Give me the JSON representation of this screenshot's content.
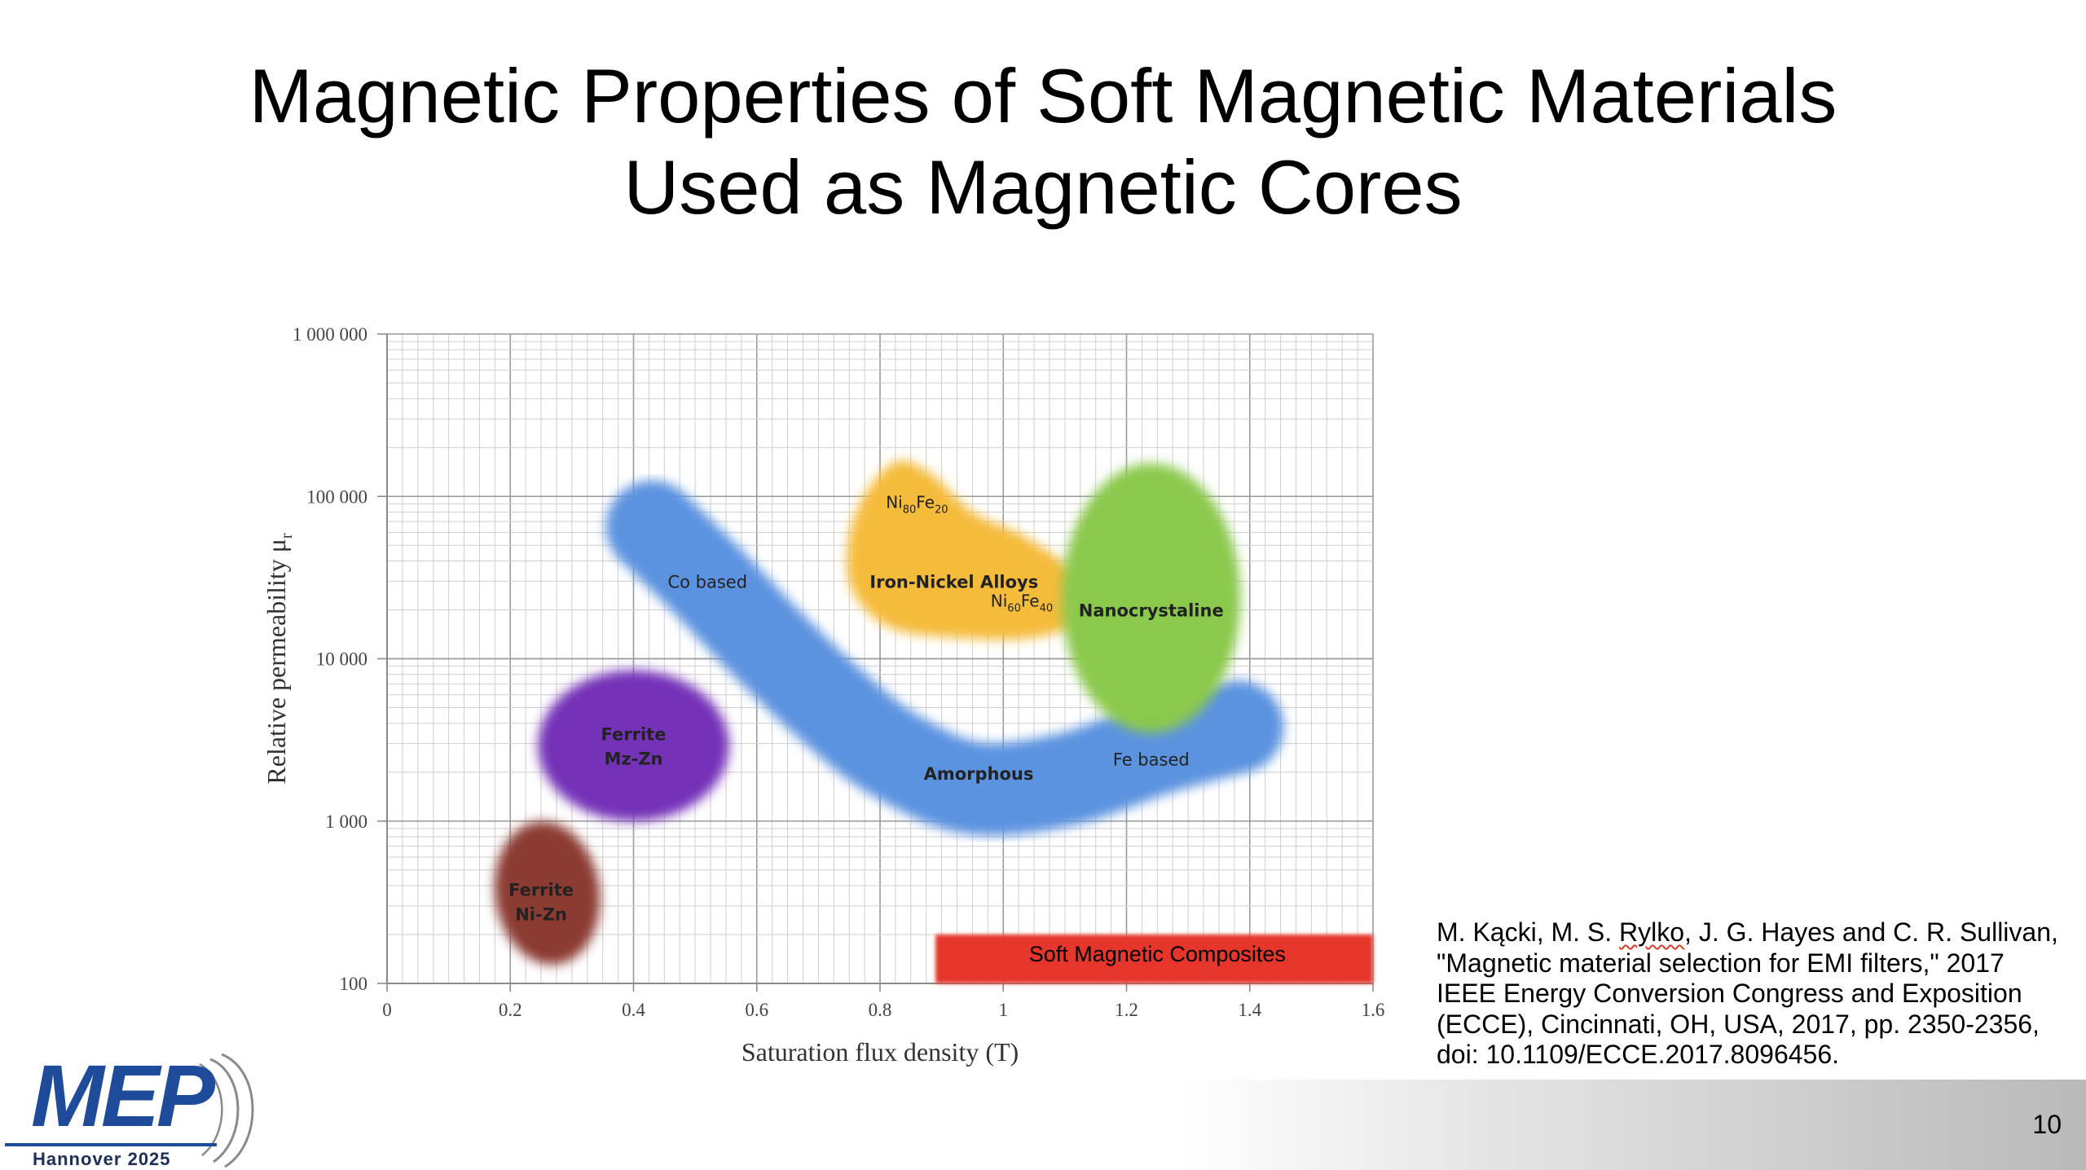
{
  "slide": {
    "title_line1": "Magnetic Properties of Soft Magnetic Materials",
    "title_line2": "Used as Magnetic Cores",
    "page_number": "10"
  },
  "reference": {
    "line1_a": "M. Kącki, M. S. ",
    "line1_b": "Rylko",
    "line1_c": ", J. G. Hayes and C. R. Sullivan,",
    "line2": "\"Magnetic material selection for EMI filters,\" 2017",
    "line3": "IEEE Energy Conversion Congress and Exposition",
    "line4": "(ECCE), Cincinnati, OH, USA, 2017, pp. 2350-2356,",
    "line5": "doi: 10.1109/ECCE.2017.8096456."
  },
  "logo": {
    "text": "MEP",
    "subtitle": "Hannover 2025"
  },
  "chart_data": {
    "type": "scatter",
    "subtype": "region-map",
    "xlabel": "Saturation flux density (T)",
    "ylabel": "Relative permeability μr",
    "xlim": [
      0,
      1.6
    ],
    "ylim": [
      100,
      1000000
    ],
    "y_scale": "log",
    "x_ticks": [
      "0",
      "0.2",
      "0.4",
      "0.6",
      "0.8",
      "1",
      "1.2",
      "1.4",
      "1.6"
    ],
    "y_ticks": [
      "100",
      "1 000",
      "10 000",
      "100 000",
      "1 000 000"
    ],
    "grid": true,
    "regions": [
      {
        "name": "Ferrite Ni-Zn",
        "label_lines": [
          "Ferrite",
          "Ni-Zn"
        ],
        "color": "#8b3a32",
        "shape": "ellipse",
        "center": [
          0.26,
          320
        ],
        "x_halfwidth": 0.085,
        "y_range": [
          130,
          1000
        ],
        "rotation_deg": -8,
        "label_at": [
          0.25,
          320
        ]
      },
      {
        "name": "Ferrite Mz-Zn",
        "label_lines": [
          "Ferrite",
          "Mz-Zn"
        ],
        "color": "#7431b8",
        "shape": "ellipse",
        "center": [
          0.4,
          2900
        ],
        "x_halfwidth": 0.155,
        "y_range": [
          1000,
          8500
        ],
        "rotation_deg": 0,
        "label_at": [
          0.4,
          2900
        ]
      },
      {
        "name": "Co based / Amorphous / Fe based",
        "label_lines": [
          "Co based"
        ],
        "color": "#5b93e0",
        "shape": "band",
        "path": [
          [
            0.43,
            65000
          ],
          [
            0.52,
            30000
          ],
          [
            0.62,
            12000
          ],
          [
            0.72,
            5200
          ],
          [
            0.82,
            2600
          ],
          [
            0.95,
            1600
          ],
          [
            1.1,
            1800
          ],
          [
            1.25,
            2800
          ],
          [
            1.38,
            3800
          ]
        ],
        "band_halfwidth_T": 0.075,
        "label_at": [
          0.52,
          30000
        ]
      },
      {
        "name": "Iron-Nickel Alloys",
        "label_lines": [
          "Iron-Nickel Alloys"
        ],
        "color": "#f5bb3a",
        "shape": "blob",
        "outline": [
          [
            0.76,
            78000
          ],
          [
            0.82,
            160000
          ],
          [
            0.88,
            140000
          ],
          [
            0.95,
            80000
          ],
          [
            1.04,
            55000
          ],
          [
            1.12,
            32000
          ],
          [
            1.13,
            18000
          ],
          [
            1.05,
            13500
          ],
          [
            0.92,
            13500
          ],
          [
            0.81,
            16000
          ],
          [
            0.75,
            30000
          ]
        ],
        "label_at": [
          0.92,
          30000
        ]
      },
      {
        "name": "Nanocrystaline",
        "label_lines": [
          "Nanocrystaline"
        ],
        "color": "#8bc94d",
        "shape": "ellipse",
        "center": [
          1.24,
          20000
        ],
        "x_halfwidth": 0.145,
        "y_range": [
          3500,
          160000
        ],
        "rotation_deg": 0,
        "label_at": [
          1.24,
          20000
        ]
      },
      {
        "name": "Soft Magnetic Composites",
        "label_lines": [
          "Soft Magnetic Composites"
        ],
        "color": "#e6342a",
        "shape": "rect",
        "x_range": [
          0.89,
          1.6
        ],
        "y_range": [
          100,
          200
        ],
        "label_at": [
          1.25,
          150
        ]
      }
    ],
    "annotations": [
      {
        "text_parts": [
          "Ni",
          "80",
          "Fe",
          "20"
        ],
        "at": [
          0.86,
          85000
        ]
      },
      {
        "text_parts": [
          "Ni",
          "60",
          "Fe",
          "40"
        ],
        "at": [
          1.03,
          21000
        ]
      },
      {
        "text": "Amorphous",
        "at": [
          0.96,
          1800
        ],
        "bold": true
      },
      {
        "text": "Fe based",
        "at": [
          1.24,
          2200
        ],
        "bold": false
      }
    ],
    "colors": {
      "axis": "#8a8a8a",
      "grid_major": "#9a9a9a",
      "grid_minor": "#cfcfcf",
      "tick_text": "#444444",
      "label_text": "#222222"
    }
  }
}
